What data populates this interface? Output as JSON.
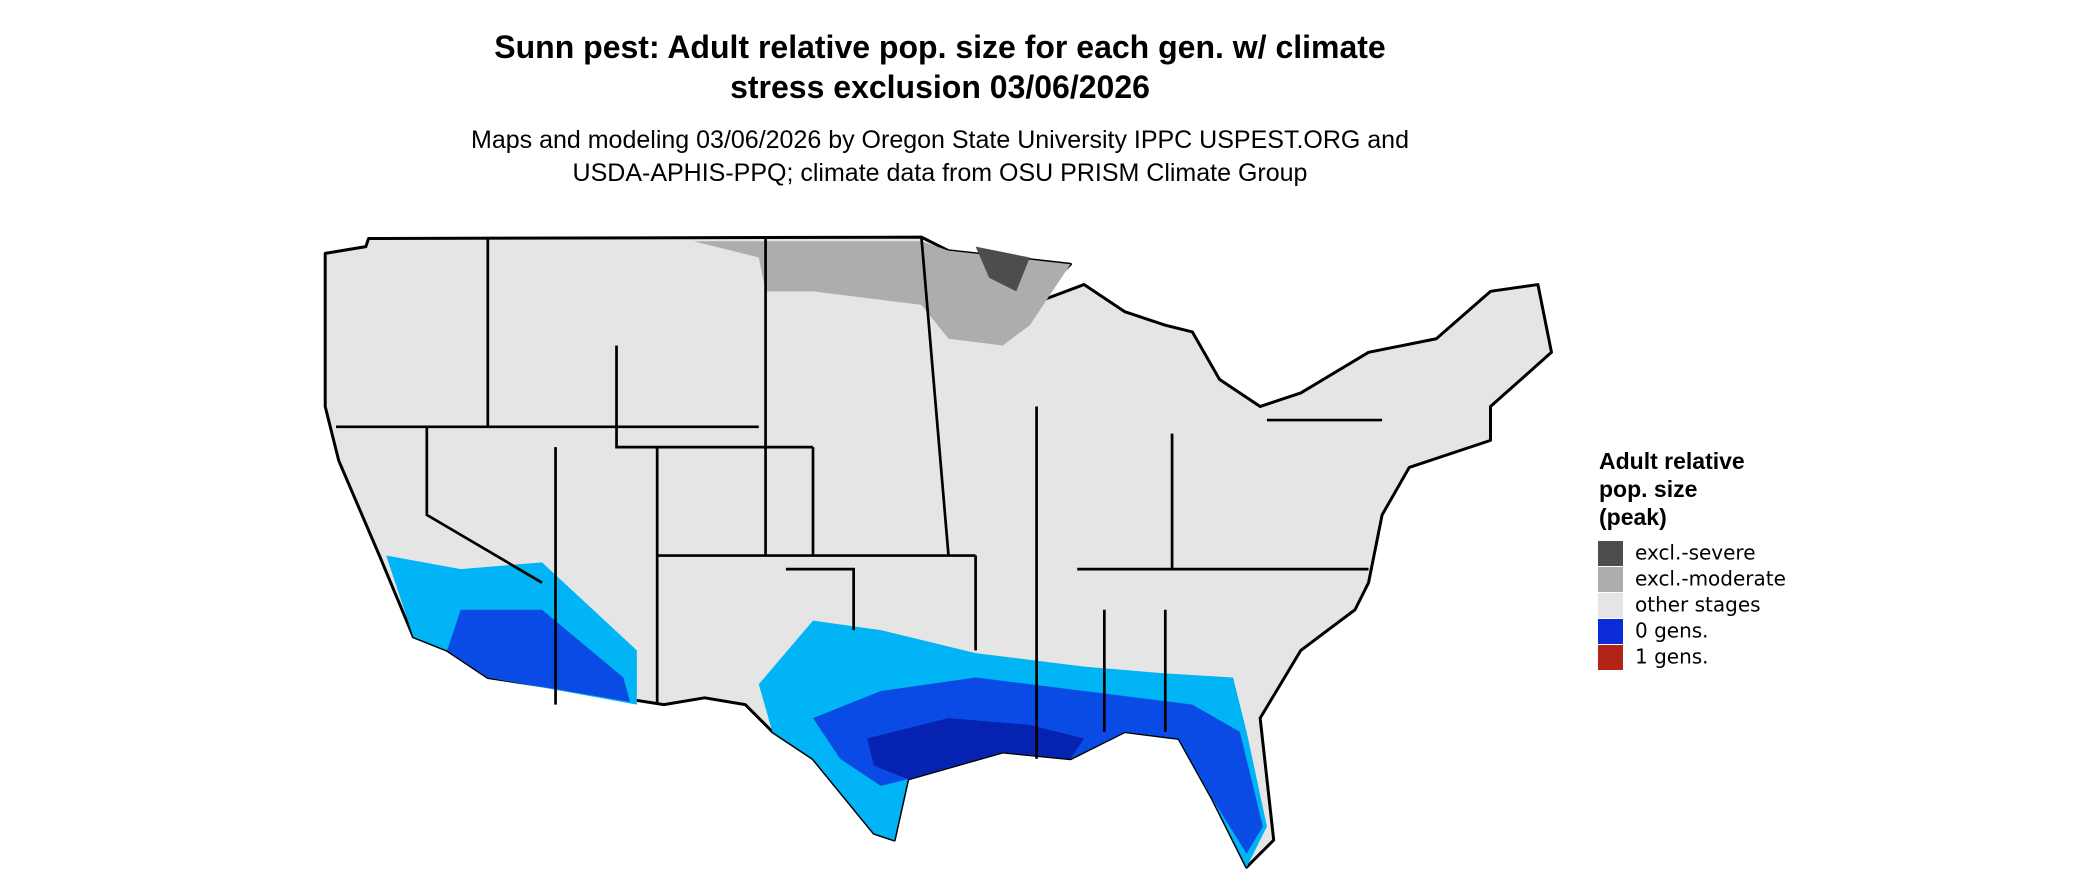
{
  "map": {
    "title": [
      "Sunn pest: Adult relative pop. size for each gen. w/ climate",
      "stress exclusion 03/06/2026"
    ],
    "subtitle": [
      "Maps and modeling 03/06/2026 by Oregon State University IPPC USPEST.ORG and",
      "USDA-APHIS-PPQ; climate data from OSU PRISM Climate Group"
    ],
    "legend": {
      "title": [
        "Adult relative",
        "pop. size",
        "(peak)"
      ],
      "items": [
        {
          "label": "excl.-severe",
          "color": "#4d4d4d"
        },
        {
          "label": "excl.-moderate",
          "color": "#adadad"
        },
        {
          "label": "other stages",
          "color": "#e5e5e5"
        },
        {
          "label": "0 gens.",
          "color": "#0a2bd6"
        },
        {
          "label": "1 gens.",
          "color": "#b22418"
        }
      ]
    }
  }
}
